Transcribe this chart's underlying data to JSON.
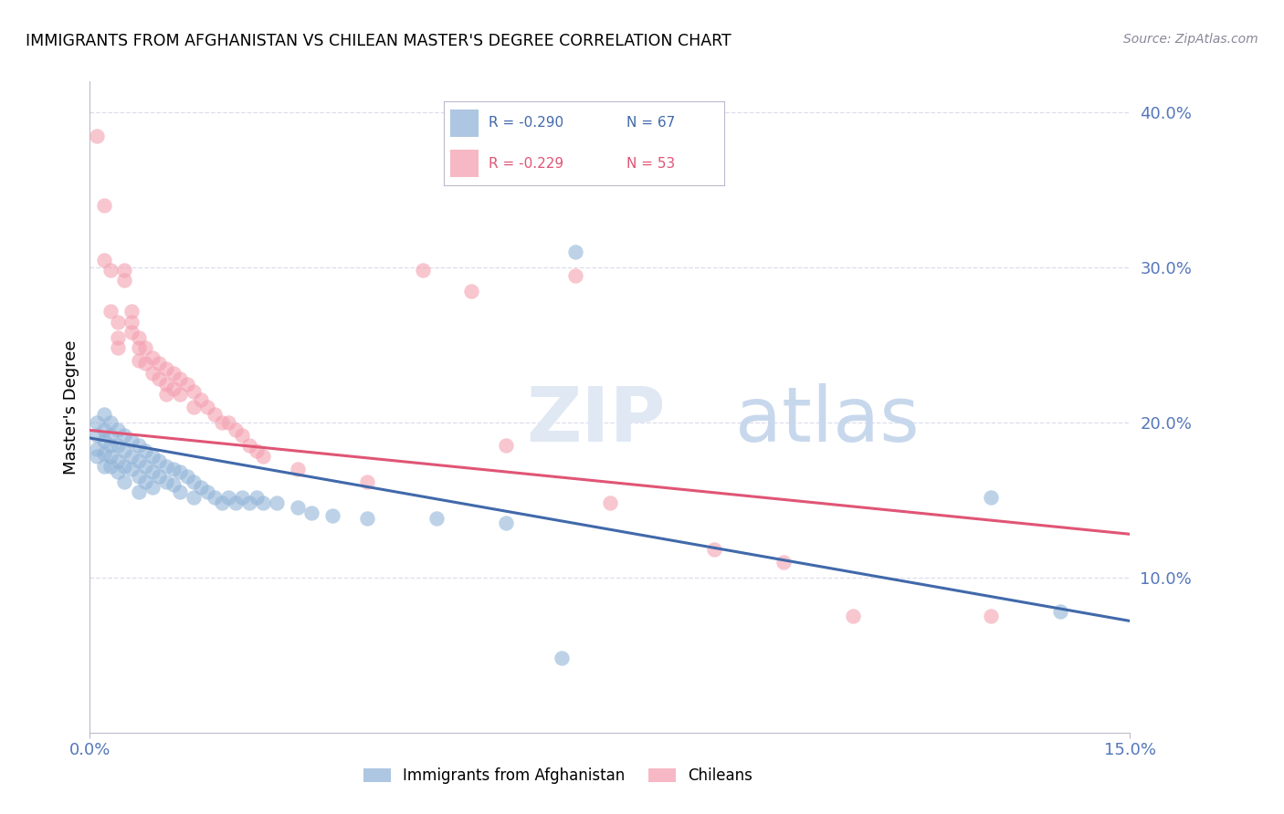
{
  "title": "IMMIGRANTS FROM AFGHANISTAN VS CHILEAN MASTER'S DEGREE CORRELATION CHART",
  "source_text": "Source: ZipAtlas.com",
  "ylabel": "Master's Degree",
  "xlim": [
    0.0,
    0.15
  ],
  "ylim": [
    0.0,
    0.42
  ],
  "yticks": [
    0.1,
    0.2,
    0.3,
    0.4
  ],
  "ytick_labels": [
    "10.0%",
    "20.0%",
    "30.0%",
    "40.0%"
  ],
  "xtick_left_label": "0.0%",
  "xtick_right_label": "15.0%",
  "blue_color": "#92B4D8",
  "pink_color": "#F4A0B0",
  "line_blue_color": "#4169AA",
  "line_pink_color": "#E05575",
  "tick_label_color": "#5577BB",
  "grid_color": "#DDDDEE",
  "background_color": "#FFFFFF",
  "blue_scatter": [
    [
      0.001,
      0.2
    ],
    [
      0.001,
      0.192
    ],
    [
      0.001,
      0.183
    ],
    [
      0.001,
      0.178
    ],
    [
      0.002,
      0.205
    ],
    [
      0.002,
      0.195
    ],
    [
      0.002,
      0.188
    ],
    [
      0.002,
      0.18
    ],
    [
      0.002,
      0.172
    ],
    [
      0.003,
      0.2
    ],
    [
      0.003,
      0.192
    ],
    [
      0.003,
      0.185
    ],
    [
      0.003,
      0.178
    ],
    [
      0.003,
      0.172
    ],
    [
      0.004,
      0.195
    ],
    [
      0.004,
      0.185
    ],
    [
      0.004,
      0.175
    ],
    [
      0.004,
      0.168
    ],
    [
      0.005,
      0.192
    ],
    [
      0.005,
      0.182
    ],
    [
      0.005,
      0.172
    ],
    [
      0.005,
      0.162
    ],
    [
      0.006,
      0.188
    ],
    [
      0.006,
      0.178
    ],
    [
      0.006,
      0.17
    ],
    [
      0.007,
      0.185
    ],
    [
      0.007,
      0.175
    ],
    [
      0.007,
      0.165
    ],
    [
      0.007,
      0.155
    ],
    [
      0.008,
      0.182
    ],
    [
      0.008,
      0.172
    ],
    [
      0.008,
      0.162
    ],
    [
      0.009,
      0.178
    ],
    [
      0.009,
      0.168
    ],
    [
      0.009,
      0.158
    ],
    [
      0.01,
      0.175
    ],
    [
      0.01,
      0.165
    ],
    [
      0.011,
      0.172
    ],
    [
      0.011,
      0.162
    ],
    [
      0.012,
      0.17
    ],
    [
      0.012,
      0.16
    ],
    [
      0.013,
      0.168
    ],
    [
      0.013,
      0.155
    ],
    [
      0.014,
      0.165
    ],
    [
      0.015,
      0.162
    ],
    [
      0.015,
      0.152
    ],
    [
      0.016,
      0.158
    ],
    [
      0.017,
      0.155
    ],
    [
      0.018,
      0.152
    ],
    [
      0.019,
      0.148
    ],
    [
      0.02,
      0.152
    ],
    [
      0.021,
      0.148
    ],
    [
      0.022,
      0.152
    ],
    [
      0.023,
      0.148
    ],
    [
      0.024,
      0.152
    ],
    [
      0.025,
      0.148
    ],
    [
      0.027,
      0.148
    ],
    [
      0.03,
      0.145
    ],
    [
      0.032,
      0.142
    ],
    [
      0.035,
      0.14
    ],
    [
      0.04,
      0.138
    ],
    [
      0.05,
      0.138
    ],
    [
      0.06,
      0.135
    ],
    [
      0.07,
      0.31
    ],
    [
      0.068,
      0.048
    ],
    [
      0.13,
      0.152
    ],
    [
      0.14,
      0.078
    ]
  ],
  "pink_scatter": [
    [
      0.001,
      0.385
    ],
    [
      0.002,
      0.34
    ],
    [
      0.002,
      0.305
    ],
    [
      0.003,
      0.298
    ],
    [
      0.003,
      0.272
    ],
    [
      0.004,
      0.265
    ],
    [
      0.004,
      0.255
    ],
    [
      0.004,
      0.248
    ],
    [
      0.005,
      0.298
    ],
    [
      0.005,
      0.292
    ],
    [
      0.006,
      0.272
    ],
    [
      0.006,
      0.265
    ],
    [
      0.006,
      0.258
    ],
    [
      0.007,
      0.255
    ],
    [
      0.007,
      0.248
    ],
    [
      0.007,
      0.24
    ],
    [
      0.008,
      0.248
    ],
    [
      0.008,
      0.238
    ],
    [
      0.009,
      0.242
    ],
    [
      0.009,
      0.232
    ],
    [
      0.01,
      0.238
    ],
    [
      0.01,
      0.228
    ],
    [
      0.011,
      0.235
    ],
    [
      0.011,
      0.225
    ],
    [
      0.011,
      0.218
    ],
    [
      0.012,
      0.232
    ],
    [
      0.012,
      0.222
    ],
    [
      0.013,
      0.228
    ],
    [
      0.013,
      0.218
    ],
    [
      0.014,
      0.225
    ],
    [
      0.015,
      0.22
    ],
    [
      0.015,
      0.21
    ],
    [
      0.016,
      0.215
    ],
    [
      0.017,
      0.21
    ],
    [
      0.018,
      0.205
    ],
    [
      0.019,
      0.2
    ],
    [
      0.02,
      0.2
    ],
    [
      0.021,
      0.195
    ],
    [
      0.022,
      0.192
    ],
    [
      0.023,
      0.185
    ],
    [
      0.024,
      0.182
    ],
    [
      0.025,
      0.178
    ],
    [
      0.03,
      0.17
    ],
    [
      0.04,
      0.162
    ],
    [
      0.048,
      0.298
    ],
    [
      0.055,
      0.285
    ],
    [
      0.06,
      0.185
    ],
    [
      0.07,
      0.295
    ],
    [
      0.075,
      0.148
    ],
    [
      0.09,
      0.118
    ],
    [
      0.1,
      0.11
    ],
    [
      0.11,
      0.075
    ],
    [
      0.13,
      0.075
    ]
  ],
  "blue_line_x": [
    0.0,
    0.15
  ],
  "blue_line_y": [
    0.19,
    0.072
  ],
  "pink_line_x": [
    0.0,
    0.15
  ],
  "pink_line_y": [
    0.195,
    0.128
  ]
}
